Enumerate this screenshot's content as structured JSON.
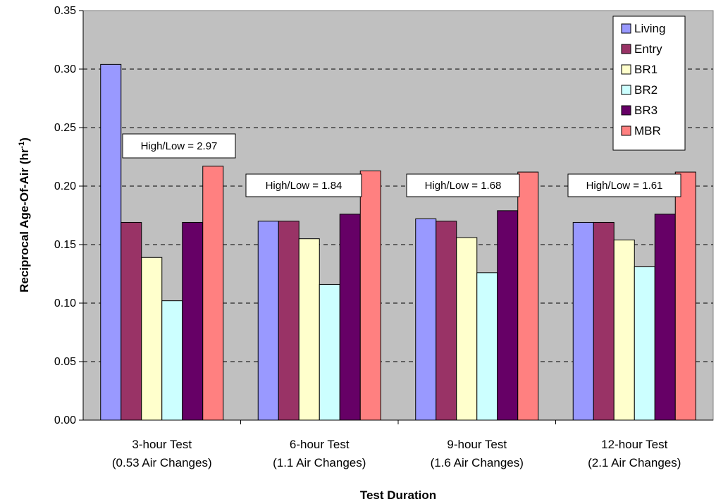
{
  "chart_data": {
    "type": "bar",
    "title": "",
    "xlabel": "Test Duration",
    "ylabel": "Reciprocal Age-Of-Air (hr",
    "ylabel_superscript": "-1",
    "ylabel_suffix": ")",
    "ylim": [
      0,
      0.35
    ],
    "yticks": [
      "0.00",
      "0.05",
      "0.10",
      "0.15",
      "0.20",
      "0.25",
      "0.30",
      "0.35"
    ],
    "grid": true,
    "legend_position": "top-right",
    "categories": [
      [
        "3-hour Test",
        "(0.53 Air Changes)"
      ],
      [
        "6-hour Test",
        "(1.1 Air Changes)"
      ],
      [
        "9-hour Test",
        "(1.6 Air Changes)"
      ],
      [
        "12-hour Test",
        "(2.1 Air Changes)"
      ]
    ],
    "series": [
      {
        "name": "Living",
        "color": "#9999ff",
        "values": [
          0.304,
          0.17,
          0.172,
          0.169
        ]
      },
      {
        "name": "Entry",
        "color": "#993366",
        "values": [
          0.169,
          0.17,
          0.17,
          0.169
        ]
      },
      {
        "name": "BR1",
        "color": "#ffffcc",
        "values": [
          0.139,
          0.155,
          0.156,
          0.154
        ]
      },
      {
        "name": "BR2",
        "color": "#ccffff",
        "values": [
          0.102,
          0.116,
          0.126,
          0.131
        ]
      },
      {
        "name": "BR3",
        "color": "#660066",
        "values": [
          0.169,
          0.176,
          0.179,
          0.176
        ]
      },
      {
        "name": "MBR",
        "color": "#ff8080",
        "values": [
          0.217,
          0.213,
          0.212,
          0.212
        ]
      }
    ],
    "annotations": [
      "High/Low = 2.97",
      "High/Low = 1.84",
      "High/Low = 1.68",
      "High/Low = 1.61"
    ]
  },
  "colors": {
    "plot_background": "#c0c0c0",
    "gridline": "#000000",
    "bar_outline": "#000000"
  }
}
